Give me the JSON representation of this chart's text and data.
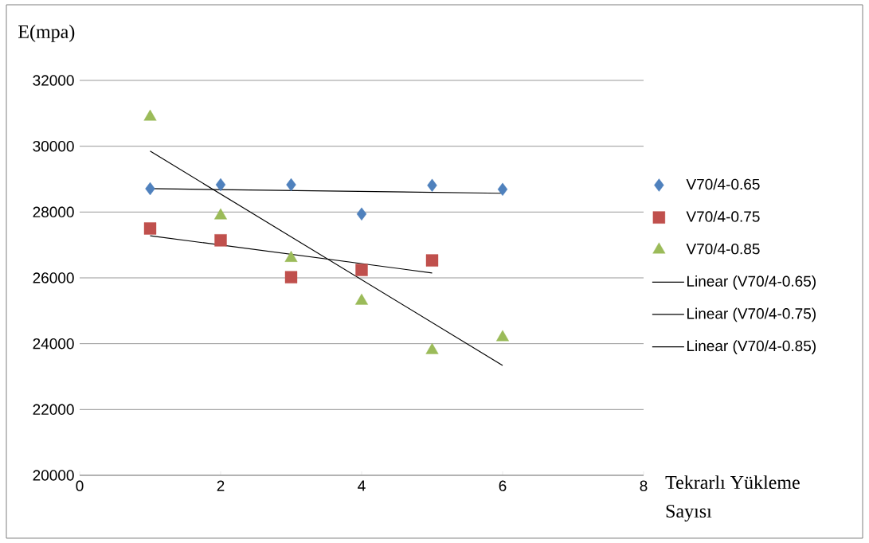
{
  "chart_data": {
    "type": "scatter",
    "ylabel": "E(mpa)",
    "xlabel": "Tekrarlı Yükleme Sayısı",
    "xlim": [
      0,
      8
    ],
    "xticks": [
      0,
      2,
      4,
      6,
      8
    ],
    "ylim": [
      20000,
      32000
    ],
    "yticks": [
      20000,
      22000,
      24000,
      26000,
      28000,
      30000,
      32000
    ],
    "grid": "y",
    "legend": "right",
    "series": [
      {
        "name": "V70/4-0.65",
        "marker": "diamond",
        "color": "#4f81bd",
        "x": [
          1,
          2,
          3,
          4,
          5,
          6
        ],
        "values": [
          28710,
          28830,
          28830,
          27940,
          28810,
          28690
        ]
      },
      {
        "name": "V70/4-0.75",
        "marker": "square",
        "color": "#c0504d",
        "x": [
          1,
          2,
          3,
          4,
          5
        ],
        "values": [
          27500,
          27140,
          26020,
          26240,
          26530
        ]
      },
      {
        "name": "V70/4-0.85",
        "marker": "triangle",
        "color": "#9bbb59",
        "x": [
          1,
          2,
          3,
          4,
          5,
          6
        ],
        "values": [
          30890,
          27890,
          26600,
          25300,
          23800,
          24190
        ]
      },
      {
        "name": "Linear (V70/4-0.65)",
        "type": "line",
        "marker": "none",
        "color": "#000000",
        "x": [
          1,
          6
        ],
        "values": [
          28710,
          28570
        ]
      },
      {
        "name": "Linear (V70/4-0.75)",
        "type": "line",
        "marker": "none",
        "color": "#000000",
        "x": [
          1,
          5
        ],
        "values": [
          27280,
          26150
        ]
      },
      {
        "name": "Linear (V70/4-0.85)",
        "type": "line",
        "marker": "none",
        "color": "#000000",
        "x": [
          1,
          6
        ],
        "values": [
          29850,
          23340
        ]
      }
    ]
  }
}
